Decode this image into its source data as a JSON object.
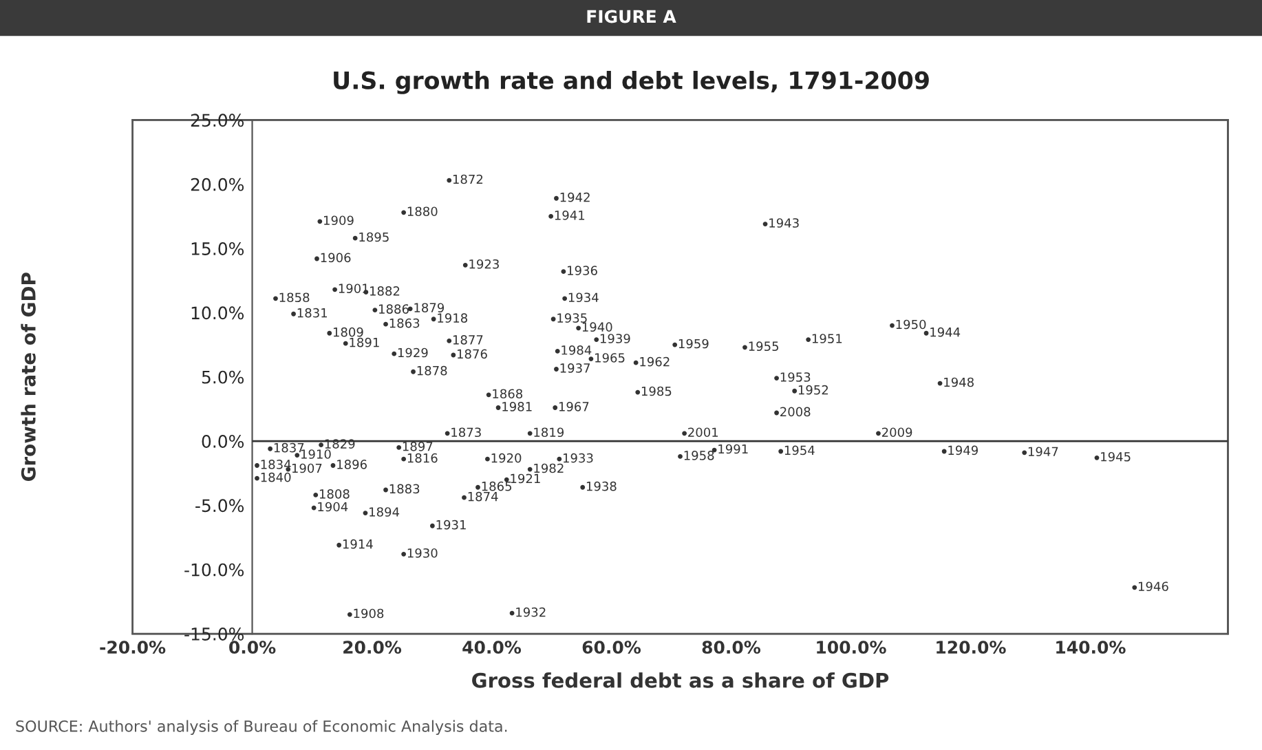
{
  "chart_data": {
    "type": "scatter",
    "title": "U.S. growth rate and debt levels, 1791-2009",
    "xlabel": "Gross federal debt as a share of GDP",
    "ylabel": "Growth rate of GDP",
    "annotations": [
      "FIGURE A",
      "SOURCE: Authors' analysis of Bureau of Economic Analysis data.",
      {
        "text": "1872",
        "x": 32.9,
        "y": 20.3
      },
      {
        "text": "1942",
        "x": 50.8,
        "y": 18.9
      },
      {
        "text": "1880",
        "x": 25.3,
        "y": 17.8
      },
      {
        "text": "1941",
        "x": 49.9,
        "y": 17.5
      },
      {
        "text": "1943",
        "x": 85.7,
        "y": 16.9
      },
      {
        "text": "1909",
        "x": 11.3,
        "y": 17.1
      },
      {
        "text": "1895",
        "x": 17.2,
        "y": 15.8
      },
      {
        "text": "1906",
        "x": 10.8,
        "y": 14.2
      },
      {
        "text": "1923",
        "x": 35.6,
        "y": 13.7
      },
      {
        "text": "1936",
        "x": 52.0,
        "y": 13.2
      },
      {
        "text": "1901",
        "x": 13.8,
        "y": 11.8
      },
      {
        "text": "1882",
        "x": 19.0,
        "y": 11.6
      },
      {
        "text": "1934",
        "x": 52.2,
        "y": 11.1
      },
      {
        "text": "1879",
        "x": 26.4,
        "y": 10.3
      },
      {
        "text": "1863",
        "x": 22.3,
        "y": 9.1
      },
      {
        "text": "1918",
        "x": 30.3,
        "y": 9.5
      },
      {
        "text": "1935",
        "x": 50.3,
        "y": 9.5
      },
      {
        "text": "1940",
        "x": 54.5,
        "y": 8.8
      },
      {
        "text": "1939",
        "x": 57.5,
        "y": 7.9
      },
      {
        "text": "1809",
        "x": 12.9,
        "y": 8.4
      },
      {
        "text": "1891",
        "x": 15.6,
        "y": 7.6
      },
      {
        "text": "1877",
        "x": 32.9,
        "y": 7.8
      },
      {
        "text": "1984",
        "x": 51.0,
        "y": 7.0
      },
      {
        "text": "1876",
        "x": 33.6,
        "y": 6.7
      },
      {
        "text": "1929",
        "x": 23.7,
        "y": 6.8
      },
      {
        "text": "1965",
        "x": 56.6,
        "y": 6.4
      },
      {
        "text": "1962",
        "x": 64.1,
        "y": 6.1
      },
      {
        "text": "1959",
        "x": 70.6,
        "y": 7.5
      },
      {
        "text": "1955",
        "x": 82.3,
        "y": 7.3
      },
      {
        "text": "1951",
        "x": 92.9,
        "y": 7.9
      },
      {
        "text": "1950",
        "x": 106.9,
        "y": 9.0
      },
      {
        "text": "1944",
        "x": 112.6,
        "y": 8.4
      },
      {
        "text": "1948",
        "x": 114.9,
        "y": 4.5
      },
      {
        "text": "1953",
        "x": 87.6,
        "y": 4.9
      },
      {
        "text": "1952",
        "x": 90.6,
        "y": 3.9
      },
      {
        "text": "1878",
        "x": 26.9,
        "y": 5.4
      },
      {
        "text": "1937",
        "x": 50.8,
        "y": 5.6
      },
      {
        "text": "1985",
        "x": 64.4,
        "y": 3.8
      },
      {
        "text": "1967",
        "x": 50.6,
        "y": 2.6
      },
      {
        "text": "1981",
        "x": 41.1,
        "y": 2.6
      },
      {
        "text": "1868",
        "x": 39.5,
        "y": 3.6
      },
      {
        "text": "2008",
        "x": 87.6,
        "y": 2.2
      },
      {
        "text": "2009",
        "x": 104.6,
        "y": 0.6
      },
      {
        "text": "2001",
        "x": 72.2,
        "y": 0.6
      },
      {
        "text": "1991",
        "x": 77.2,
        "y": -0.7
      },
      {
        "text": "1958",
        "x": 71.5,
        "y": -1.2
      },
      {
        "text": "1954",
        "x": 88.3,
        "y": -0.8
      },
      {
        "text": "1949",
        "x": 115.6,
        "y": -0.8
      },
      {
        "text": "1947",
        "x": 129.0,
        "y": -0.9
      },
      {
        "text": "1945",
        "x": 141.1,
        "y": -1.3
      },
      {
        "text": "1946",
        "x": 147.4,
        "y": -11.4
      },
      {
        "text": "1910",
        "x": 7.5,
        "y": -1.1
      },
      {
        "text": "1896",
        "x": 13.5,
        "y": -1.9
      },
      {
        "text": "1816",
        "x": 25.3,
        "y": -1.4
      },
      {
        "text": "1907",
        "x": 6.0,
        "y": -2.2
      },
      {
        "text": "1834",
        "x": 0.8,
        "y": -1.9
      },
      {
        "text": "1840",
        "x": 0.8,
        "y": -2.9
      },
      {
        "text": "1920",
        "x": 39.3,
        "y": -1.4
      },
      {
        "text": "1982",
        "x": 46.4,
        "y": -2.2
      },
      {
        "text": "1921",
        "x": 42.5,
        "y": -3.0
      },
      {
        "text": "1933",
        "x": 51.3,
        "y": -1.4
      },
      {
        "text": "1865",
        "x": 37.7,
        "y": -3.6
      },
      {
        "text": "1938",
        "x": 55.2,
        "y": -3.6
      },
      {
        "text": "1883",
        "x": 22.3,
        "y": -3.8
      },
      {
        "text": "1808",
        "x": 10.6,
        "y": -4.2
      },
      {
        "text": "1874",
        "x": 35.4,
        "y": -4.4
      },
      {
        "text": "1894",
        "x": 18.9,
        "y": -5.6
      },
      {
        "text": "1904",
        "x": 10.3,
        "y": -5.2
      },
      {
        "text": "1931",
        "x": 30.1,
        "y": -6.6
      },
      {
        "text": "1914",
        "x": 14.5,
        "y": -8.1
      },
      {
        "text": "1930",
        "x": 25.3,
        "y": -8.8
      },
      {
        "text": "1908",
        "x": 16.3,
        "y": -13.5
      },
      {
        "text": "1932",
        "x": 43.4,
        "y": -13.4
      },
      {
        "text": "1873",
        "x": 32.6,
        "y": 0.6
      },
      {
        "text": "1897",
        "x": 24.5,
        "y": -0.5
      },
      {
        "text": "1837",
        "x": 3.0,
        "y": -0.6
      },
      {
        "text": "1829",
        "x": 11.5,
        "y": -0.3
      },
      {
        "text": "1819",
        "x": 46.4,
        "y": 0.6
      },
      {
        "text": "1858",
        "x": 3.9,
        "y": 11.1
      },
      {
        "text": "1831",
        "x": 6.9,
        "y": 9.9
      },
      {
        "text": "1886",
        "x": 20.5,
        "y": 10.2
      }
    ],
    "xlim": [
      -20,
      163
    ],
    "ylim": [
      -15,
      25
    ],
    "xticks": [
      {
        "value": -20,
        "label": "-20.0%"
      },
      {
        "value": 0,
        "label": "0.0%"
      },
      {
        "value": 20,
        "label": "20.0%"
      },
      {
        "value": 40,
        "label": "40.0%"
      },
      {
        "value": 60,
        "label": "60.0%"
      },
      {
        "value": 80,
        "label": "80.0%"
      },
      {
        "value": 100,
        "label": "100.0%"
      },
      {
        "value": 120,
        "label": "120.0%"
      },
      {
        "value": 140,
        "label": "140.0%"
      }
    ],
    "yticks": [
      {
        "value": -15,
        "label": "-15.0%"
      },
      {
        "value": -10,
        "label": "-10.0%"
      },
      {
        "value": -5,
        "label": "-5.0%"
      },
      {
        "value": 0,
        "label": "0.0%"
      },
      {
        "value": 5,
        "label": "5.0%"
      },
      {
        "value": 10,
        "label": "10.0%"
      },
      {
        "value": 15,
        "label": "15.0%"
      },
      {
        "value": 20,
        "label": "20.0%"
      },
      {
        "value": 25,
        "label": "25.0%"
      }
    ],
    "ref_lines": [
      {
        "axis": "y",
        "value": 0,
        "label": null,
        "color": "#333333"
      }
    ],
    "grid": false,
    "legend": false,
    "marker": "circle",
    "series": [
      {
        "color": "#333333",
        "x": [
          32.9,
          50.8,
          25.3,
          49.9,
          85.7,
          11.3,
          17.2,
          10.8,
          35.6,
          52.0,
          13.8,
          19.0,
          52.2,
          26.4,
          22.3,
          30.3,
          50.3,
          54.5,
          57.5,
          12.9,
          15.6,
          32.9,
          51.0,
          33.6,
          23.7,
          56.6,
          64.1,
          70.6,
          82.3,
          92.9,
          106.9,
          112.6,
          114.9,
          87.6,
          90.6,
          26.9,
          50.8,
          64.4,
          50.6,
          41.1,
          39.5,
          87.6,
          104.6,
          72.2,
          77.2,
          71.5,
          88.3,
          115.6,
          129.0,
          141.1,
          147.4,
          7.5,
          13.5,
          25.3,
          6.0,
          0.8,
          0.8,
          39.3,
          46.4,
          42.5,
          51.3,
          37.7,
          55.2,
          22.3,
          10.6,
          35.4,
          18.9,
          10.3,
          30.1,
          14.5,
          25.3,
          16.3,
          43.4,
          32.6,
          24.5,
          3.0,
          11.5,
          46.4,
          3.9,
          6.9,
          20.5
        ],
        "values": [
          20.3,
          18.9,
          17.8,
          17.5,
          16.9,
          17.1,
          15.8,
          14.2,
          13.7,
          13.2,
          11.8,
          11.6,
          11.1,
          10.3,
          9.1,
          9.5,
          9.5,
          8.8,
          7.9,
          8.4,
          7.6,
          7.8,
          7.0,
          6.7,
          6.8,
          6.4,
          6.1,
          7.5,
          7.3,
          7.9,
          9.0,
          8.4,
          4.5,
          4.9,
          3.9,
          5.4,
          5.6,
          3.8,
          2.6,
          2.6,
          3.6,
          2.2,
          0.6,
          0.6,
          -0.7,
          -1.2,
          -0.8,
          -0.8,
          -0.9,
          -1.3,
          -11.4,
          -1.1,
          -1.9,
          -1.4,
          -2.2,
          -1.9,
          -2.9,
          -1.4,
          -2.2,
          -3.0,
          -1.4,
          -3.6,
          -3.6,
          -3.8,
          -4.2,
          -4.4,
          -5.6,
          -5.2,
          -6.6,
          -8.1,
          -8.8,
          -13.5,
          -13.4,
          0.6,
          -0.5,
          -0.6,
          -0.3,
          0.6,
          11.1,
          9.9,
          10.2
        ]
      }
    ]
  }
}
